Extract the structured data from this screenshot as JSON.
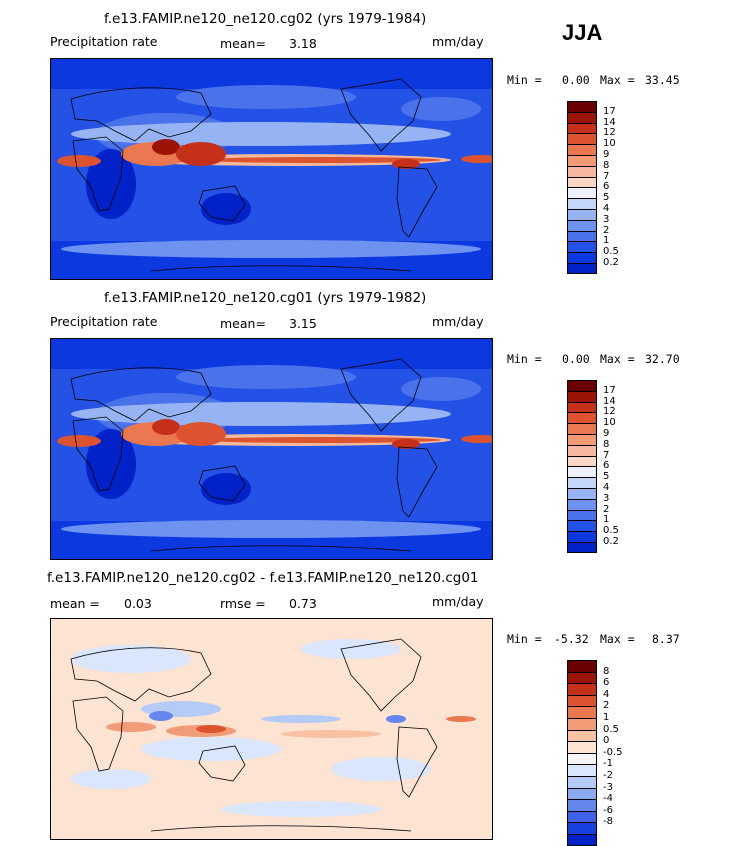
{
  "season": "JJA",
  "colors": {
    "abs_palette": [
      "#000a8c",
      "#0022c8",
      "#0c38e0",
      "#2552e6",
      "#4a72ea",
      "#6e92ef",
      "#96b4f3",
      "#c4d7fa",
      "#eef1fc",
      "#fbd6c4",
      "#f5b89c",
      "#f29a74",
      "#e9774f",
      "#dd5330",
      "#c4301a",
      "#9c1408",
      "#6a0000"
    ],
    "diff_palette": [
      "#000a8c",
      "#0022c8",
      "#1640e0",
      "#3d62e8",
      "#6487ee",
      "#8caaf2",
      "#b4caf7",
      "#d9e6fc",
      "#f5f5f5",
      "#fde3d2",
      "#f8c1a4",
      "#f29c77",
      "#e9774f",
      "#dd5330",
      "#c4301a",
      "#9c1408",
      "#6a0000"
    ],
    "coast": "#000000"
  },
  "panels": [
    {
      "id": "top",
      "title": "f.e13.FAMIP.ne120_ne120.cg02 (yrs 1979-1984)",
      "left_label": "Precipitation rate",
      "mid_label": "mean=",
      "mid_value": "3.18",
      "units": "mm/day",
      "min_label": "Min =",
      "min_value": "0.00",
      "max_label": "Max =",
      "max_value": "33.45"
    },
    {
      "id": "middle",
      "title": "f.e13.FAMIP.ne120_ne120.cg01 (yrs 1979-1982)",
      "left_label": "Precipitation rate",
      "mid_label": "mean=",
      "mid_value": "3.15",
      "units": "mm/day",
      "min_label": "Min =",
      "min_value": "0.00",
      "max_label": "Max =",
      "max_value": "32.70"
    },
    {
      "id": "bottom",
      "title": "f.e13.FAMIP.ne120_ne120.cg02 - f.e13.FAMIP.ne120_ne120.cg01",
      "left_label": "mean =",
      "left_value": "0.03",
      "mid_label": "rmse =",
      "mid_value": "0.73",
      "units": "mm/day",
      "min_label": "Min =",
      "min_value": "-5.32",
      "max_label": "Max =",
      "max_value": "8.37"
    }
  ],
  "chart_data": [
    {
      "type": "heatmap",
      "title": "f.e13.FAMIP.ne120_ne120.cg02 (yrs 1979-1984)",
      "variable": "Precipitation rate",
      "units": "mm/day",
      "season": "JJA",
      "mean": 3.18,
      "min": 0.0,
      "max": 33.45,
      "contour_levels": [
        "17",
        "14",
        "12",
        "10",
        "9",
        "8",
        "7",
        "6",
        "5",
        "4",
        "3",
        "2",
        "1",
        "0.5",
        "0.2"
      ]
    },
    {
      "type": "heatmap",
      "title": "f.e13.FAMIP.ne120_ne120.cg01 (yrs 1979-1982)",
      "variable": "Precipitation rate",
      "units": "mm/day",
      "season": "JJA",
      "mean": 3.15,
      "min": 0.0,
      "max": 32.7,
      "contour_levels": [
        "17",
        "14",
        "12",
        "10",
        "9",
        "8",
        "7",
        "6",
        "5",
        "4",
        "3",
        "2",
        "1",
        "0.5",
        "0.2"
      ]
    },
    {
      "type": "heatmap",
      "title": "f.e13.FAMIP.ne120_ne120.cg02 - f.e13.FAMIP.ne120_ne120.cg01",
      "units": "mm/day",
      "season": "JJA",
      "mean": 0.03,
      "rmse": 0.73,
      "min": -5.32,
      "max": 8.37,
      "contour_levels": [
        "8",
        "6",
        "4",
        "2",
        "1",
        "0.5",
        "0",
        "-0.5",
        "-1",
        "-2",
        "-3",
        "-4",
        "-6",
        "-8"
      ]
    }
  ]
}
